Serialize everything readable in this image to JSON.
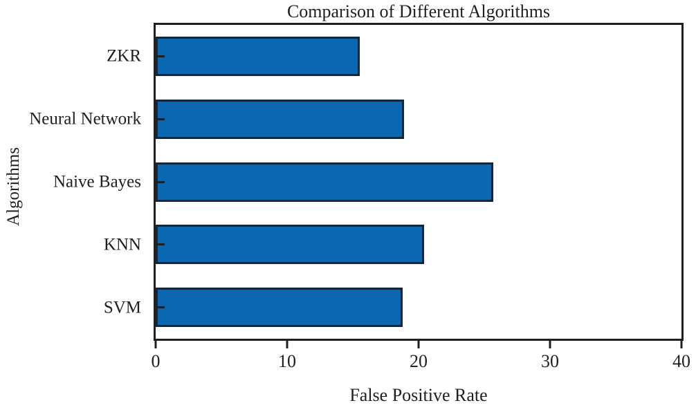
{
  "chart_data": {
    "type": "bar",
    "orientation": "horizontal",
    "title": "Comparison of Different Algorithms",
    "xlabel": "False Positive Rate",
    "ylabel": "Algorithms",
    "categories": [
      "ZKR",
      "Neural Network",
      "Naive Bayes",
      "KNN",
      "SVM"
    ],
    "values": [
      15.5,
      18.9,
      25.7,
      20.4,
      18.8
    ],
    "xlim": [
      0,
      40
    ],
    "xticks": [
      0,
      10,
      20,
      30,
      40
    ],
    "grid": false,
    "bar_color": "#0a68b2",
    "bar_edge_color": "#17243a",
    "axis_color": "#1f1f1f",
    "background_color": "#ffffff"
  }
}
